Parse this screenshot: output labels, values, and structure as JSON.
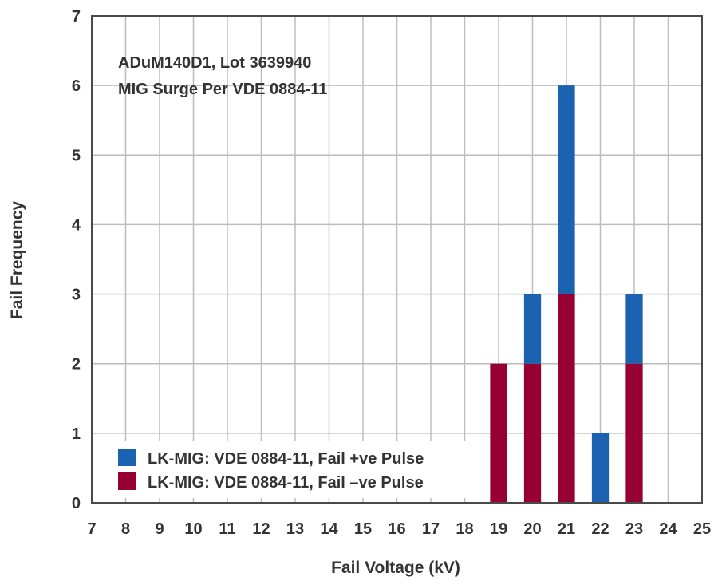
{
  "chart_data": {
    "type": "bar",
    "stacked": true,
    "xlabel": "Fail Voltage (kV)",
    "ylabel": "Fail Frequency",
    "x_ticks": [
      7,
      8,
      9,
      10,
      11,
      12,
      13,
      14,
      15,
      16,
      17,
      18,
      19,
      20,
      21,
      22,
      23,
      24,
      25
    ],
    "y_ticks": [
      0,
      1,
      2,
      3,
      4,
      5,
      6,
      7
    ],
    "xlim": [
      7,
      25
    ],
    "ylim": [
      0,
      7
    ],
    "grid": true,
    "annotation_lines": [
      "ADuM140D1, Lot 3639940",
      "MIG Surge Per VDE 0884-11"
    ],
    "legend_position": "bottom-left",
    "categories": [
      19,
      20,
      21,
      22,
      23
    ],
    "series": [
      {
        "name": "LK-MIG: VDE 0884-11, Fail –ve Pulse",
        "color": "#960033",
        "values": [
          2,
          2,
          3,
          0,
          2
        ]
      },
      {
        "name": "LK-MIG: VDE 0884-11, Fail +ve Pulse",
        "color": "#1b62b0",
        "values": [
          0,
          1,
          3,
          1,
          1
        ]
      }
    ],
    "legend_order": [
      1,
      0
    ]
  }
}
